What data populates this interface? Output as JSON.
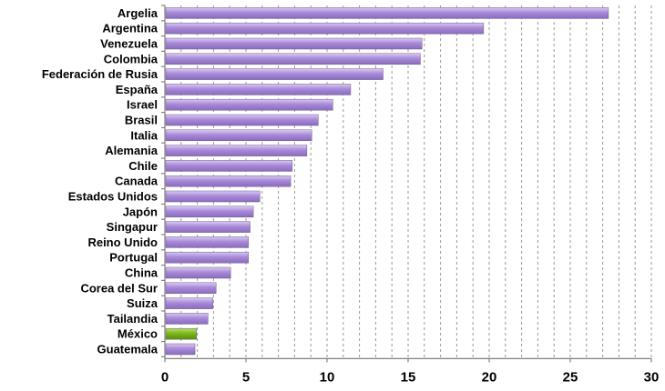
{
  "chart_data": {
    "type": "bar",
    "orientation": "horizontal",
    "title": "",
    "xlabel": "",
    "ylabel": "",
    "xlim": [
      0,
      30
    ],
    "xticks": [
      0,
      5,
      10,
      15,
      20,
      25,
      30
    ],
    "grid": true,
    "categories": [
      "Argelia",
      "Argentina",
      "Venezuela",
      "Colombia",
      "Federación de Rusia",
      "España",
      "Israel",
      "Brasil",
      "Italia",
      "Alemania",
      "Chile",
      "Canada",
      "Estados Unidos",
      "Japón",
      "Singapur",
      "Reino Unido",
      "Portugal",
      "China",
      "Corea del Sur",
      "Suiza",
      "Tailandia",
      "México",
      "Guatemala"
    ],
    "values": [
      27.3,
      19.6,
      15.8,
      15.7,
      13.4,
      11.4,
      10.3,
      9.4,
      9.0,
      8.7,
      7.8,
      7.7,
      5.8,
      5.4,
      5.2,
      5.1,
      5.1,
      4.0,
      3.1,
      2.9,
      2.6,
      1.9,
      1.8
    ],
    "bar_color": "#a98ad9",
    "highlight": {
      "category": "México",
      "color": "#7cb81a"
    }
  }
}
